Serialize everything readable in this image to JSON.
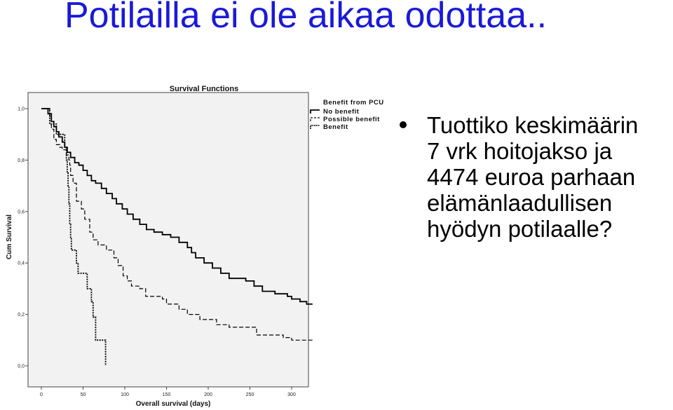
{
  "slide": {
    "title": "Potilailla ei ole aikaa odottaa..",
    "bullet_lines": [
      "Tuottiko keskimäärin",
      "7 vrk hoitojakso ja",
      "4474 euroa parhaan",
      "elämänlaadullisen",
      "hyödyn potilaalle?"
    ],
    "colors": {
      "title": "#1a1ad6",
      "plot_background": "#f2f2f2",
      "series_line": "#000000"
    }
  },
  "chart_data": {
    "type": "line",
    "title": "Survival Functions",
    "xlabel": "Overall survival (days)",
    "ylabel": "Cum Survival",
    "xlim": [
      0,
      325
    ],
    "ylim": [
      0,
      1.0
    ],
    "x_ticks": [
      0,
      50,
      100,
      150,
      200,
      250,
      300
    ],
    "y_ticks": [
      0.0,
      0.2,
      0.4,
      0.6,
      0.8,
      1.0
    ],
    "x_tick_labels": [
      "0",
      "50",
      "100",
      "150",
      "200",
      "250",
      "300"
    ],
    "y_tick_labels": [
      "0,0",
      "0,2",
      "0,4",
      "0,6",
      "0,8",
      "1,0"
    ],
    "grid": false,
    "legend_title": "Benefit from PCU",
    "legend_position": "top-right, outside plot",
    "series": [
      {
        "name": "No benefit",
        "style": "solid",
        "points": [
          [
            0,
            1.0
          ],
          [
            8,
            1.0
          ],
          [
            8,
            0.98
          ],
          [
            12,
            0.98
          ],
          [
            12,
            0.95
          ],
          [
            15,
            0.95
          ],
          [
            15,
            0.93
          ],
          [
            18,
            0.93
          ],
          [
            18,
            0.91
          ],
          [
            21,
            0.91
          ],
          [
            21,
            0.89
          ],
          [
            25,
            0.89
          ],
          [
            25,
            0.87
          ],
          [
            28,
            0.87
          ],
          [
            28,
            0.85
          ],
          [
            31,
            0.85
          ],
          [
            31,
            0.83
          ],
          [
            35,
            0.83
          ],
          [
            35,
            0.81
          ],
          [
            40,
            0.81
          ],
          [
            40,
            0.79
          ],
          [
            45,
            0.79
          ],
          [
            45,
            0.78
          ],
          [
            50,
            0.78
          ],
          [
            50,
            0.76
          ],
          [
            55,
            0.76
          ],
          [
            55,
            0.74
          ],
          [
            60,
            0.74
          ],
          [
            60,
            0.72
          ],
          [
            65,
            0.72
          ],
          [
            65,
            0.71
          ],
          [
            72,
            0.71
          ],
          [
            72,
            0.69
          ],
          [
            78,
            0.69
          ],
          [
            78,
            0.67
          ],
          [
            85,
            0.67
          ],
          [
            85,
            0.65
          ],
          [
            90,
            0.65
          ],
          [
            90,
            0.63
          ],
          [
            97,
            0.63
          ],
          [
            97,
            0.61
          ],
          [
            103,
            0.61
          ],
          [
            103,
            0.59
          ],
          [
            110,
            0.59
          ],
          [
            110,
            0.57
          ],
          [
            118,
            0.57
          ],
          [
            118,
            0.55
          ],
          [
            126,
            0.55
          ],
          [
            126,
            0.53
          ],
          [
            135,
            0.53
          ],
          [
            135,
            0.52
          ],
          [
            145,
            0.52
          ],
          [
            145,
            0.51
          ],
          [
            155,
            0.51
          ],
          [
            155,
            0.5
          ],
          [
            165,
            0.5
          ],
          [
            165,
            0.48
          ],
          [
            175,
            0.48
          ],
          [
            175,
            0.46
          ],
          [
            180,
            0.46
          ],
          [
            180,
            0.44
          ],
          [
            185,
            0.44
          ],
          [
            185,
            0.42
          ],
          [
            195,
            0.42
          ],
          [
            195,
            0.4
          ],
          [
            205,
            0.4
          ],
          [
            205,
            0.38
          ],
          [
            215,
            0.38
          ],
          [
            215,
            0.36
          ],
          [
            225,
            0.36
          ],
          [
            225,
            0.34
          ],
          [
            245,
            0.34
          ],
          [
            245,
            0.33
          ],
          [
            255,
            0.33
          ],
          [
            255,
            0.31
          ],
          [
            265,
            0.31
          ],
          [
            265,
            0.29
          ],
          [
            280,
            0.29
          ],
          [
            280,
            0.28
          ],
          [
            295,
            0.28
          ],
          [
            295,
            0.27
          ],
          [
            300,
            0.27
          ],
          [
            300,
            0.26
          ],
          [
            310,
            0.26
          ],
          [
            310,
            0.25
          ],
          [
            318,
            0.25
          ],
          [
            318,
            0.24
          ],
          [
            325,
            0.24
          ]
        ]
      },
      {
        "name": "Possible benefit",
        "style": "dashed",
        "points": [
          [
            0,
            1.0
          ],
          [
            10,
            1.0
          ],
          [
            10,
            0.97
          ],
          [
            12,
            0.97
          ],
          [
            12,
            0.92
          ],
          [
            15,
            0.92
          ],
          [
            15,
            0.88
          ],
          [
            18,
            0.88
          ],
          [
            18,
            0.86
          ],
          [
            22,
            0.86
          ],
          [
            22,
            0.85
          ],
          [
            25,
            0.85
          ],
          [
            25,
            0.84
          ],
          [
            30,
            0.84
          ],
          [
            30,
            0.82
          ],
          [
            33,
            0.82
          ],
          [
            33,
            0.8
          ],
          [
            34,
            0.8
          ],
          [
            34,
            0.78
          ],
          [
            35,
            0.78
          ],
          [
            35,
            0.74
          ],
          [
            38,
            0.74
          ],
          [
            38,
            0.71
          ],
          [
            42,
            0.71
          ],
          [
            42,
            0.64
          ],
          [
            48,
            0.64
          ],
          [
            48,
            0.61
          ],
          [
            52,
            0.61
          ],
          [
            52,
            0.57
          ],
          [
            58,
            0.57
          ],
          [
            58,
            0.52
          ],
          [
            62,
            0.52
          ],
          [
            62,
            0.49
          ],
          [
            68,
            0.49
          ],
          [
            68,
            0.47
          ],
          [
            78,
            0.47
          ],
          [
            78,
            0.45
          ],
          [
            87,
            0.45
          ],
          [
            87,
            0.42
          ],
          [
            92,
            0.42
          ],
          [
            92,
            0.39
          ],
          [
            98,
            0.39
          ],
          [
            98,
            0.35
          ],
          [
            103,
            0.35
          ],
          [
            103,
            0.33
          ],
          [
            108,
            0.33
          ],
          [
            108,
            0.31
          ],
          [
            118,
            0.31
          ],
          [
            118,
            0.3
          ],
          [
            125,
            0.3
          ],
          [
            125,
            0.27
          ],
          [
            145,
            0.27
          ],
          [
            145,
            0.26
          ],
          [
            150,
            0.26
          ],
          [
            150,
            0.24
          ],
          [
            165,
            0.24
          ],
          [
            165,
            0.22
          ],
          [
            175,
            0.22
          ],
          [
            175,
            0.2
          ],
          [
            190,
            0.2
          ],
          [
            190,
            0.18
          ],
          [
            210,
            0.18
          ],
          [
            210,
            0.16
          ],
          [
            225,
            0.16
          ],
          [
            225,
            0.15
          ],
          [
            258,
            0.15
          ],
          [
            258,
            0.12
          ],
          [
            290,
            0.12
          ],
          [
            290,
            0.11
          ],
          [
            300,
            0.11
          ],
          [
            300,
            0.1
          ],
          [
            325,
            0.1
          ]
        ]
      },
      {
        "name": "Benefit",
        "style": "dotted",
        "points": [
          [
            0,
            1.0
          ],
          [
            10,
            1.0
          ],
          [
            10,
            0.94
          ],
          [
            18,
            0.94
          ],
          [
            18,
            0.9
          ],
          [
            28,
            0.9
          ],
          [
            28,
            0.85
          ],
          [
            30,
            0.85
          ],
          [
            30,
            0.8
          ],
          [
            31,
            0.8
          ],
          [
            31,
            0.75
          ],
          [
            32,
            0.75
          ],
          [
            32,
            0.7
          ],
          [
            33,
            0.7
          ],
          [
            33,
            0.63
          ],
          [
            34,
            0.63
          ],
          [
            34,
            0.55
          ],
          [
            35,
            0.55
          ],
          [
            35,
            0.5
          ],
          [
            36,
            0.5
          ],
          [
            36,
            0.45
          ],
          [
            42,
            0.45
          ],
          [
            42,
            0.4
          ],
          [
            44,
            0.4
          ],
          [
            44,
            0.36
          ],
          [
            55,
            0.36
          ],
          [
            55,
            0.3
          ],
          [
            60,
            0.3
          ],
          [
            60,
            0.25
          ],
          [
            62,
            0.25
          ],
          [
            62,
            0.19
          ],
          [
            65,
            0.19
          ],
          [
            65,
            0.1
          ],
          [
            77,
            0.1
          ],
          [
            77,
            0.0
          ]
        ]
      }
    ]
  }
}
